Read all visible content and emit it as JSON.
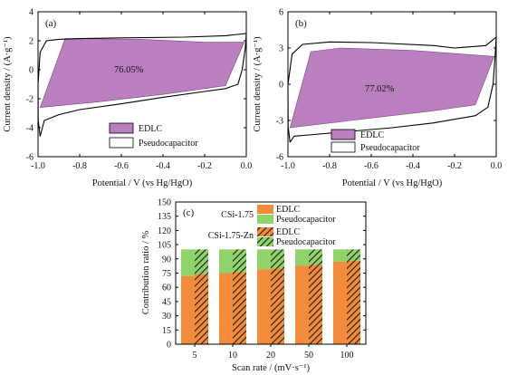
{
  "figure": {
    "chart_data": [
      {
        "type": "area",
        "panel_label": "(a)",
        "xlabel": "Potential / V (vs Hg/HgO)",
        "ylabel": "Current density / (A·g⁻¹)",
        "xlim": [
          -1.0,
          0.0
        ],
        "ylim": [
          -6,
          4
        ],
        "xticks": [
          "-1.0",
          "-0.8",
          "-0.6",
          "-0.4",
          "-0.2",
          "0.0"
        ],
        "yticks": [
          "-6",
          "-4",
          "-2",
          "0",
          "2",
          "4"
        ],
        "annotation": "76.05%",
        "legend": [
          "EDLC",
          "Pseudocapacitor"
        ],
        "series": [
          {
            "name": "EDLC",
            "color": "#b97fbf",
            "points": [
              [
                -0.87,
                2.15
              ],
              [
                -0.5,
                2.1
              ],
              [
                -0.2,
                1.9
              ],
              [
                -0.01,
                1.9
              ],
              [
                -0.1,
                -1.1
              ],
              [
                -0.4,
                -1.7
              ],
              [
                -0.7,
                -2.2
              ],
              [
                -0.99,
                -2.6
              ]
            ]
          },
          {
            "name": "Pseudocapacitor",
            "color": "#000000",
            "points": [
              [
                -0.99,
                -4.6
              ],
              [
                -0.97,
                -3.5
              ],
              [
                -0.9,
                -3.1
              ],
              [
                -0.8,
                -2.75
              ],
              [
                -0.6,
                -2.35
              ],
              [
                -0.4,
                -1.9
              ],
              [
                -0.2,
                -1.5
              ],
              [
                -0.1,
                -1.3
              ],
              [
                -0.04,
                -1.0
              ],
              [
                -0.02,
                0.0
              ],
              [
                -0.005,
                1.5
              ],
              [
                0.0,
                2.5
              ],
              [
                -0.1,
                2.35
              ],
              [
                -0.3,
                2.25
              ],
              [
                -0.6,
                2.2
              ],
              [
                -0.8,
                2.15
              ],
              [
                -0.9,
                2.1
              ],
              [
                -0.96,
                2.0
              ],
              [
                -0.99,
                1.2
              ],
              [
                -1.0,
                -1.0
              ],
              [
                -0.999,
                -3.5
              ],
              [
                -0.99,
                -4.6
              ]
            ]
          }
        ]
      },
      {
        "type": "area",
        "panel_label": "(b)",
        "xlabel": "Potential / V (vs Hg/HgO)",
        "ylabel": "Current density / (A·g⁻¹)",
        "xlim": [
          -1.0,
          0.0
        ],
        "ylim": [
          -6,
          6
        ],
        "xticks": [
          "-1.0",
          "-0.8",
          "-0.6",
          "-0.4",
          "-0.2",
          "0.0"
        ],
        "yticks": [
          "-6",
          "-3",
          "0",
          "3",
          "6"
        ],
        "annotation": "77.02%",
        "legend": [
          "EDLC",
          "Pseudocapacitor"
        ],
        "series": [
          {
            "name": "EDLC",
            "color": "#b97fbf",
            "points": [
              [
                -0.89,
                2.7
              ],
              [
                -0.75,
                3.0
              ],
              [
                -0.4,
                2.8
              ],
              [
                -0.01,
                2.3
              ],
              [
                -0.1,
                -1.7
              ],
              [
                -0.3,
                -2.2
              ],
              [
                -0.6,
                -2.8
              ],
              [
                -0.99,
                -3.6
              ]
            ]
          },
          {
            "name": "Pseudocapacitor",
            "color": "#000000",
            "points": [
              [
                -0.99,
                -4.8
              ],
              [
                -0.97,
                -4.3
              ],
              [
                -0.9,
                -4.2
              ],
              [
                -0.7,
                -3.9
              ],
              [
                -0.5,
                -3.6
              ],
              [
                -0.3,
                -3.2
              ],
              [
                -0.1,
                -2.6
              ],
              [
                -0.04,
                -1.9
              ],
              [
                -0.015,
                0.0
              ],
              [
                -0.005,
                2.5
              ],
              [
                0.0,
                3.9
              ],
              [
                -0.05,
                3.2
              ],
              [
                -0.2,
                3.0
              ],
              [
                -0.3,
                3.2
              ],
              [
                -0.6,
                3.45
              ],
              [
                -0.8,
                3.5
              ],
              [
                -0.93,
                3.3
              ],
              [
                -0.98,
                2.5
              ],
              [
                -1.0,
                0.0
              ],
              [
                -0.999,
                -3.5
              ],
              [
                -0.99,
                -4.8
              ]
            ]
          }
        ]
      },
      {
        "type": "bar",
        "panel_label": "(c)",
        "xlabel": "Scan rate / (mV·s⁻¹)",
        "ylabel": "Contribution ratio / %",
        "categories": [
          "5",
          "10",
          "20",
          "50",
          "100"
        ],
        "ylim": [
          0,
          150
        ],
        "yticks": [
          "0",
          "15",
          "30",
          "45",
          "60",
          "75",
          "90",
          "105",
          "120",
          "135",
          "150"
        ],
        "groups": [
          {
            "name": "CSi-1.75",
            "edlc_label": "EDLC",
            "pseudo_label": "Pseudocapacitor",
            "edlc": [
              72,
              75,
              79,
              83,
              87
            ],
            "pseudocapacitor": [
              28,
              25,
              21,
              17,
              13
            ]
          },
          {
            "name": "CSi-1.75-Zn",
            "edlc_label": "EDLC",
            "pseudo_label": "Pseudocapacitor",
            "edlc": [
              74,
              76,
              80,
              84,
              88
            ],
            "pseudocapacitor": [
              26,
              24,
              20,
              16,
              12
            ]
          }
        ],
        "colors": {
          "edlc": "#f28c3b",
          "pseudocapacitor": "#8fd36a",
          "hatch": "#1a1a1a"
        }
      }
    ]
  }
}
